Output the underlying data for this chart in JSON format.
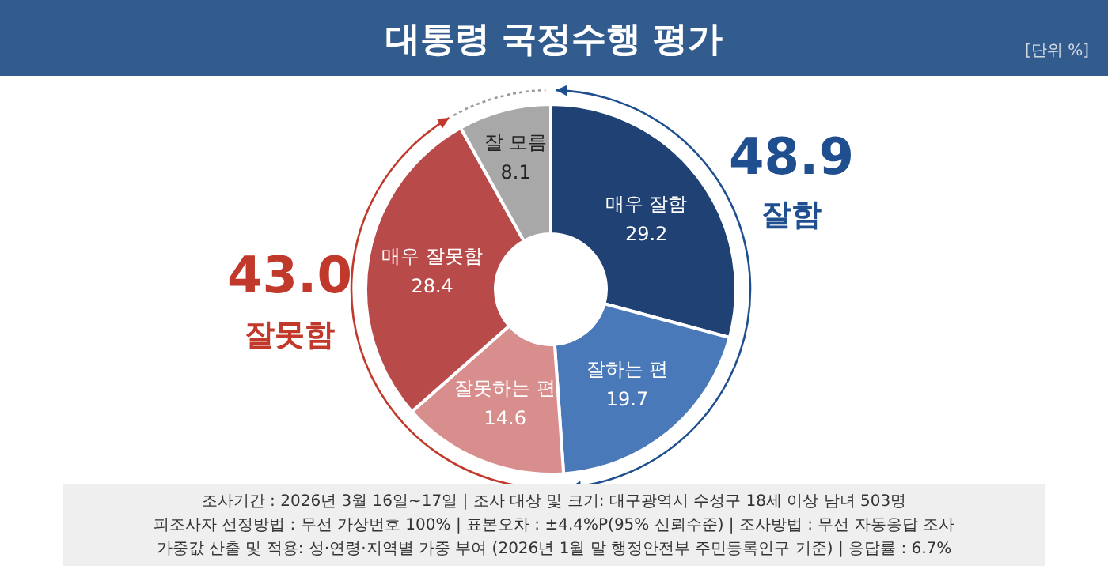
{
  "chart_data": {
    "type": "donut",
    "title": "대통령 국정수행 평가",
    "subtitle": "[단위 %]",
    "categories": [
      "매우 잘함",
      "잘하는 편",
      "잘못하는 편",
      "매우 잘못함",
      "잘 모름"
    ],
    "values": [
      29.2,
      19.7,
      14.6,
      28.4,
      8.1
    ],
    "colors": [
      "#1f4174",
      "#4a79b9",
      "#d98e8e",
      "#b94a4a",
      "#a8a8a8"
    ],
    "data_labels": true,
    "annotations": [
      "48.9",
      "잘함",
      "43.0",
      "잘못함",
      "조사기간 : 2026년 3월 16일~17일 | 조사 대상 및 크기: 대구광역시 수성구 18세 이상 남녀 503명",
      "피조사자 선정방법 : 무선 가상번호 100% | 표본오차 : ±4.4%P(95% 신뢰수준) | 조사방법 : 무선 자동응답 조사",
      "가중값 산출 및 적용: 성·연령·지역별 가중 부여 (2026년 1월 말 행정안전부 주민등록인구 기준) | 응답률 : 6.7%"
    ]
  }
}
